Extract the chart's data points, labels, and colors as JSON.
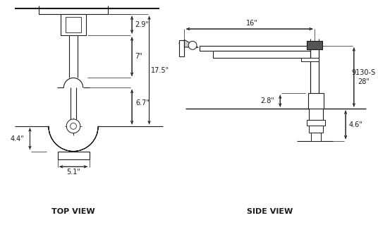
{
  "bg_color": "#ffffff",
  "lc": "#1a1a1a",
  "top_view_label": "TOP VIEW",
  "side_view_label": "SIDE VIEW",
  "d29": "2.9\"",
  "d7": "7\"",
  "d175": "17.5\"",
  "d67": "6.7\"",
  "d44": "4.4\"",
  "d51": "5.1\"",
  "d16": "16\"",
  "d28": "2.8\"",
  "d46": "4.6\"",
  "model1": "9130-S",
  "model2": "28\""
}
